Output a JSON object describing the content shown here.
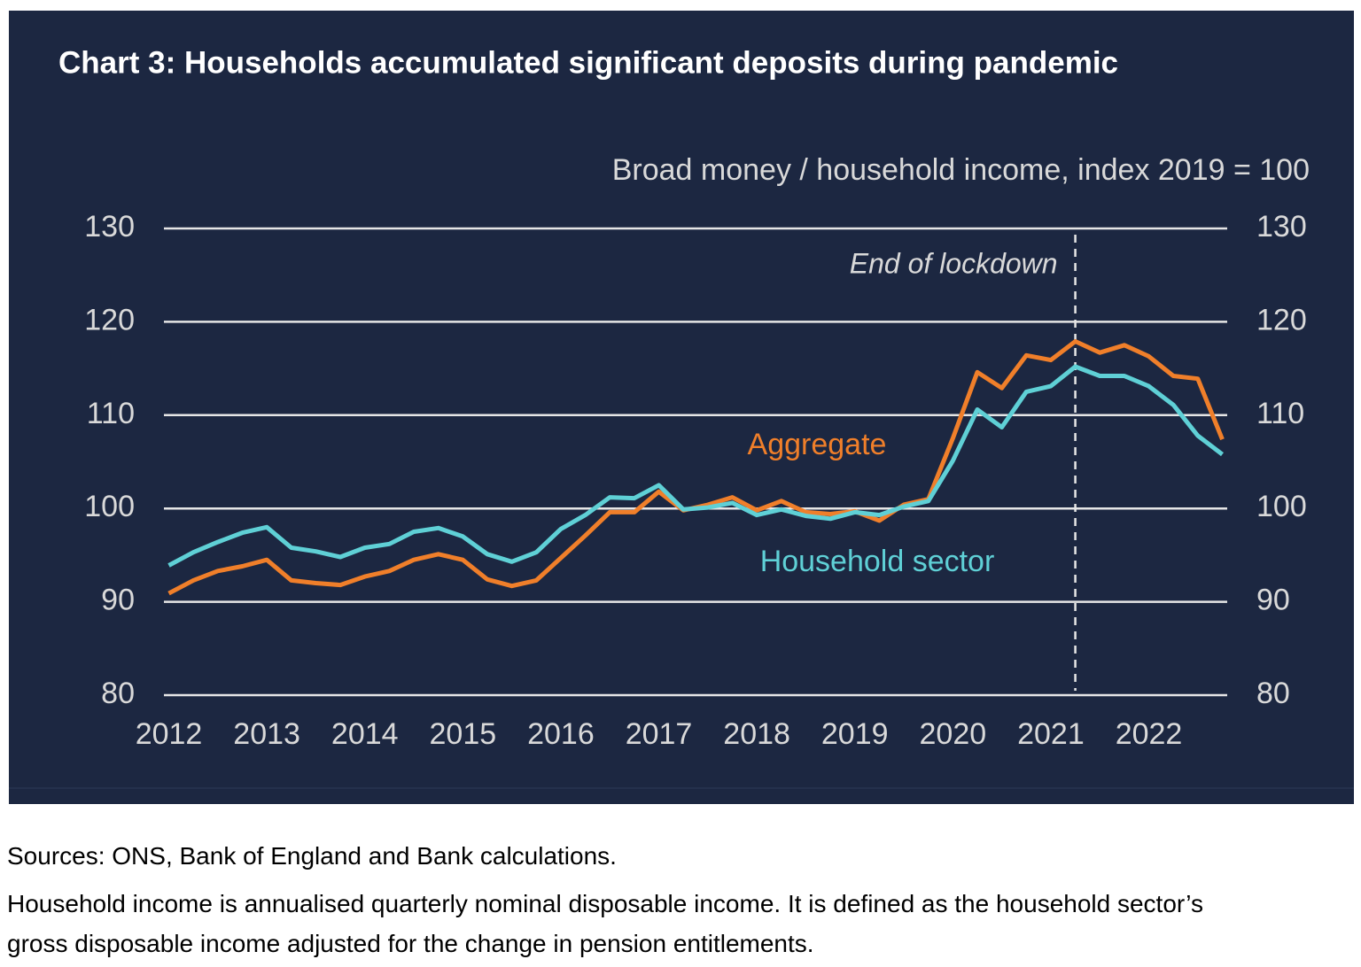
{
  "chart_data": {
    "type": "line",
    "title": "Chart 3: Households accumulated significant deposits during pandemic",
    "subtitle": "Broad money / household income, index 2019 = 100",
    "x": [
      2012,
      2012.25,
      2012.5,
      2012.75,
      2013,
      2013.25,
      2013.5,
      2013.75,
      2014,
      2014.25,
      2014.5,
      2014.75,
      2015,
      2015.25,
      2015.5,
      2015.75,
      2016,
      2016.25,
      2016.5,
      2016.75,
      2017,
      2017.25,
      2017.5,
      2017.75,
      2018,
      2018.25,
      2018.5,
      2018.75,
      2019,
      2019.25,
      2019.5,
      2019.75,
      2020,
      2020.25,
      2020.5,
      2020.75,
      2021,
      2021.25,
      2021.5,
      2021.75,
      2022,
      2022.25,
      2022.5,
      2022.75
    ],
    "series": [
      {
        "name": "Aggregate",
        "color": "#f07f2a",
        "values": [
          90.9,
          92.3,
          93.3,
          93.8,
          94.5,
          92.3,
          92.0,
          91.8,
          92.7,
          93.3,
          94.5,
          95.1,
          94.5,
          92.4,
          91.7,
          92.3,
          94.7,
          97.1,
          99.6,
          99.6,
          101.8,
          99.8,
          100.4,
          101.2,
          99.8,
          100.8,
          99.6,
          99.4,
          99.7,
          98.7,
          100.4,
          101.0,
          107.5,
          114.6,
          112.9,
          116.4,
          115.9,
          117.9,
          116.7,
          117.5,
          116.3,
          114.2,
          113.9,
          107.4
        ]
      },
      {
        "name": "Household sector",
        "color": "#5fd0d6",
        "values": [
          93.9,
          95.3,
          96.4,
          97.4,
          98.0,
          95.8,
          95.4,
          94.8,
          95.8,
          96.2,
          97.5,
          97.9,
          97.0,
          95.1,
          94.3,
          95.3,
          97.8,
          99.3,
          101.2,
          101.1,
          102.5,
          99.9,
          100.1,
          100.6,
          99.3,
          99.9,
          99.2,
          98.9,
          99.6,
          99.3,
          100.2,
          100.8,
          105.1,
          110.6,
          108.7,
          112.5,
          113.1,
          115.2,
          114.2,
          114.2,
          113.1,
          111.1,
          107.8,
          105.8
        ]
      }
    ],
    "xlim": [
      2011.95,
      2022.8
    ],
    "xticks": [
      2012,
      2013,
      2014,
      2015,
      2016,
      2017,
      2018,
      2019,
      2020,
      2021,
      2022
    ],
    "ylim": [
      80,
      130
    ],
    "yticks": [
      80,
      90,
      100,
      110,
      120,
      130
    ],
    "grid": true,
    "vline": {
      "x": 2021.25,
      "label": "End of lockdown"
    }
  },
  "notes": {
    "sources": "Sources: ONS, Bank of England and Bank calculations.",
    "note": "Household income is annualised quarterly nominal disposable income. It is defined as the household sector’s gross disposable income adjusted for the change in pension entitlements."
  }
}
